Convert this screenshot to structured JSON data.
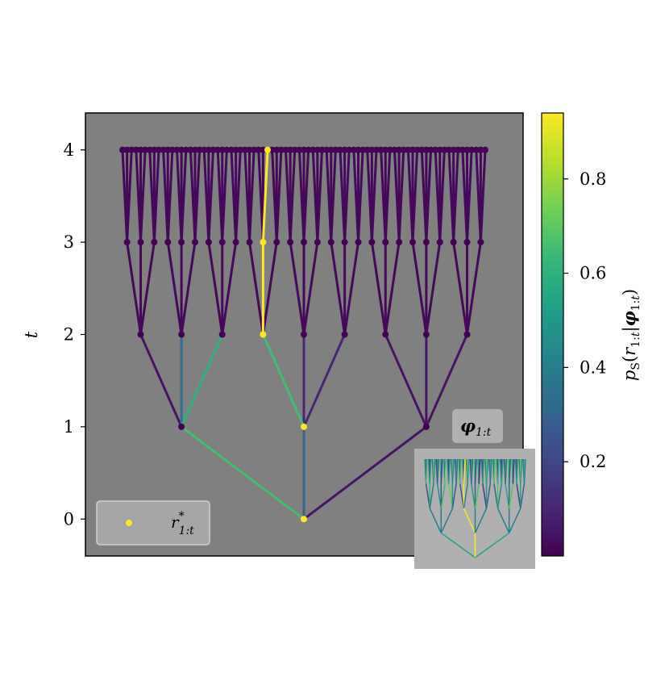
{
  "chart_data": [
    {
      "type": "scatter",
      "title": "",
      "xlabel": "",
      "ylabel": "t",
      "ylim": [
        -0.4,
        4.4
      ],
      "y_ticks": [
        "0",
        "1",
        "2",
        "3",
        "4"
      ],
      "background": "#808080",
      "legend": {
        "placement": "bottom-left",
        "entries": [
          {
            "label": "r*1:t",
            "marker_color": "#fde725"
          }
        ]
      },
      "tree": {
        "branching": [
          3,
          3,
          3,
          3
        ],
        "depth": 4,
        "highlighted_path": [
          1,
          0,
          1,
          2
        ],
        "edge_probabilities": {
          "t1": [
            0.65,
            0.3,
            0.05
          ],
          "t2": [
            [
              0.05,
              0.35,
              0.6
            ],
            [
              0.65,
              0.1,
              0.1
            ],
            [
              0.05,
              0.05,
              0.05
            ]
          ],
          "t3_highlighted": [
            0.02,
            0.94,
            0.02
          ],
          "t4_highlighted": [
            0.02,
            0.02,
            0.94
          ],
          "other": 0.02
        }
      },
      "highlighted_point_color": "#fde725",
      "node_color_default": "#440154"
    },
    {
      "type": "colorbar",
      "label": "pS(r1:t|φ1:t)",
      "range": [
        0.0,
        0.94
      ],
      "ticks": [
        0.2,
        0.4,
        0.6,
        0.8
      ],
      "tick_labels": [
        "0.2",
        "0.4",
        "0.6",
        "0.8"
      ],
      "colormap": [
        "#440154",
        "#482878",
        "#3e4989",
        "#31688e",
        "#26828e",
        "#1f9e89",
        "#35b779",
        "#6ece58",
        "#b5de2b",
        "#fde725"
      ]
    },
    {
      "type": "inset",
      "title": "φ1:t",
      "background": "#b0b0b0",
      "placement": "bottom-right"
    }
  ]
}
